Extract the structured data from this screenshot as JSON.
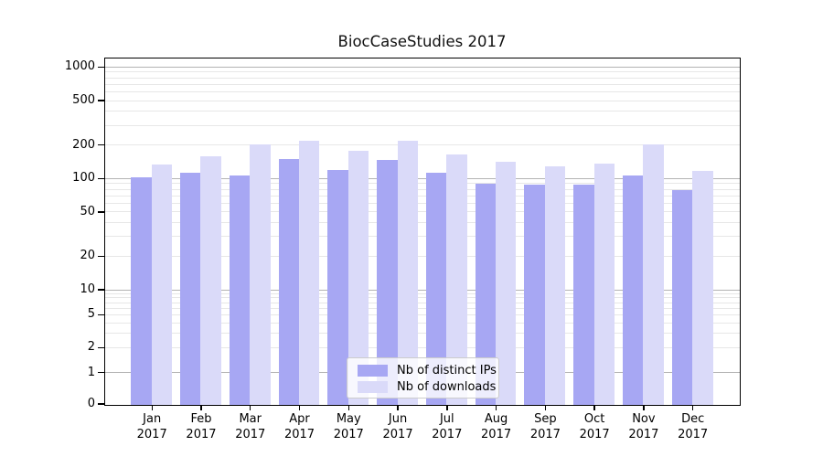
{
  "chart_data": {
    "type": "bar",
    "title": "BiocCaseStudies 2017",
    "categories": [
      {
        "month": "Jan",
        "year": "2017"
      },
      {
        "month": "Feb",
        "year": "2017"
      },
      {
        "month": "Mar",
        "year": "2017"
      },
      {
        "month": "Apr",
        "year": "2017"
      },
      {
        "month": "May",
        "year": "2017"
      },
      {
        "month": "Jun",
        "year": "2017"
      },
      {
        "month": "Jul",
        "year": "2017"
      },
      {
        "month": "Aug",
        "year": "2017"
      },
      {
        "month": "Sep",
        "year": "2017"
      },
      {
        "month": "Oct",
        "year": "2017"
      },
      {
        "month": "Nov",
        "year": "2017"
      },
      {
        "month": "Dec",
        "year": "2017"
      }
    ],
    "series": [
      {
        "name": "Nb of distinct IPs",
        "color": "#a7a7f3",
        "values": [
          103,
          113,
          107,
          150,
          121,
          148,
          114,
          90,
          89,
          89,
          107,
          80
        ]
      },
      {
        "name": "Nb of downloads",
        "color": "#dadaf9",
        "values": [
          136,
          161,
          205,
          221,
          178,
          221,
          167,
          142,
          129,
          137,
          206,
          119
        ]
      }
    ],
    "yticks": [
      0,
      1,
      2,
      5,
      10,
      20,
      50,
      100,
      200,
      500,
      1000
    ],
    "yscale": "symlog",
    "ylim": [
      0,
      1230
    ],
    "xlabel": "",
    "ylabel": "",
    "grid": true,
    "legend_position": "bottom-center",
    "grid_major_color": "#b3b3b3",
    "grid_minor_color": "#e7e7e7"
  }
}
